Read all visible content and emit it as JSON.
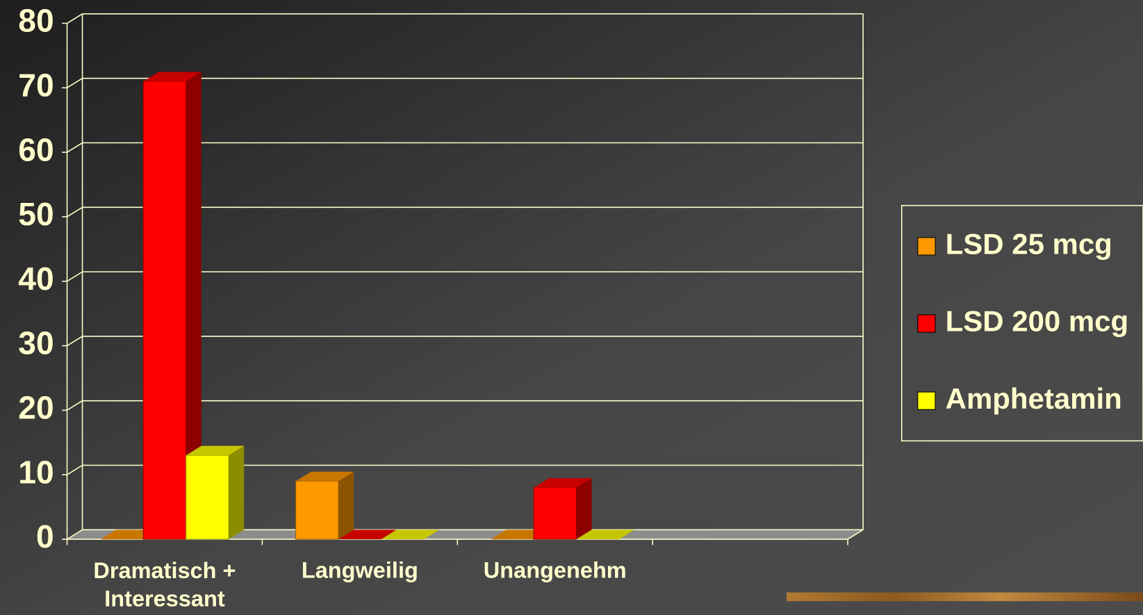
{
  "chart_data": {
    "type": "bar3d",
    "categories": [
      "Dramatisch +\nInteressant",
      "Langweilig",
      "Unangenehm",
      null
    ],
    "series": [
      {
        "name": "LSD 25 mcg",
        "color": "#ff9900",
        "values": [
          0,
          9,
          0,
          null
        ]
      },
      {
        "name": "LSD 200 mcg",
        "color": "#ff0000",
        "values": [
          71,
          0,
          8,
          null
        ]
      },
      {
        "name": "Amphetamin",
        "color": "#ffff00",
        "values": [
          13,
          0,
          0,
          null
        ]
      }
    ],
    "ylim": [
      0,
      80
    ],
    "yticks": [
      0,
      10,
      20,
      30,
      40,
      50,
      60,
      70,
      80
    ],
    "grid": true,
    "legend": "right"
  }
}
